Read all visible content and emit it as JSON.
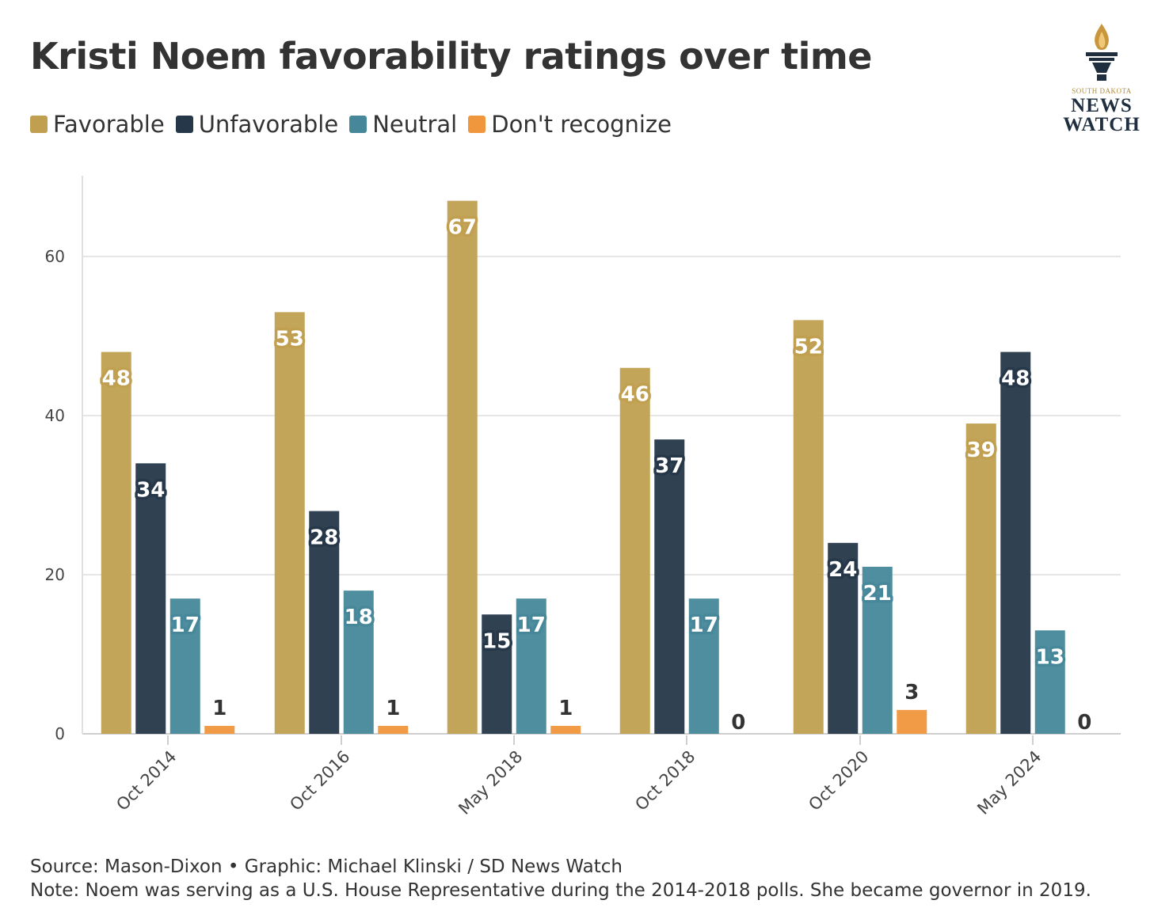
{
  "title": "Kristi Noem favorability ratings over time",
  "logo": {
    "line1": "SOUTH DAKOTA",
    "line2": "NEWS",
    "line3": "WATCH"
  },
  "footer": {
    "source": "Source: Mason-Dixon • Graphic: Michael Klinski / SD News Watch",
    "note": "Note: Noem was serving as a U.S. House Representative during the 2014-2018 polls. She became governor in 2019."
  },
  "chart_data": {
    "type": "bar",
    "categories": [
      "Oct 2014",
      "Oct 2016",
      "May 2018",
      "Oct 2018",
      "Oct 2020",
      "May 2024"
    ],
    "series": [
      {
        "name": "Favorable",
        "color": "#c0a050",
        "values": [
          48,
          53,
          67,
          46,
          52,
          39
        ]
      },
      {
        "name": "Unfavorable",
        "color": "#253749",
        "values": [
          34,
          28,
          15,
          37,
          24,
          48
        ]
      },
      {
        "name": "Neutral",
        "color": "#46889a",
        "values": [
          17,
          18,
          17,
          17,
          21,
          13
        ]
      },
      {
        "name": "Don't recognize",
        "color": "#f0963c",
        "values": [
          1,
          1,
          1,
          0,
          3,
          0
        ]
      }
    ],
    "yticks": [
      0,
      20,
      40,
      60
    ],
    "ylim": [
      0,
      70
    ],
    "grid": true,
    "legend": "top-left"
  }
}
